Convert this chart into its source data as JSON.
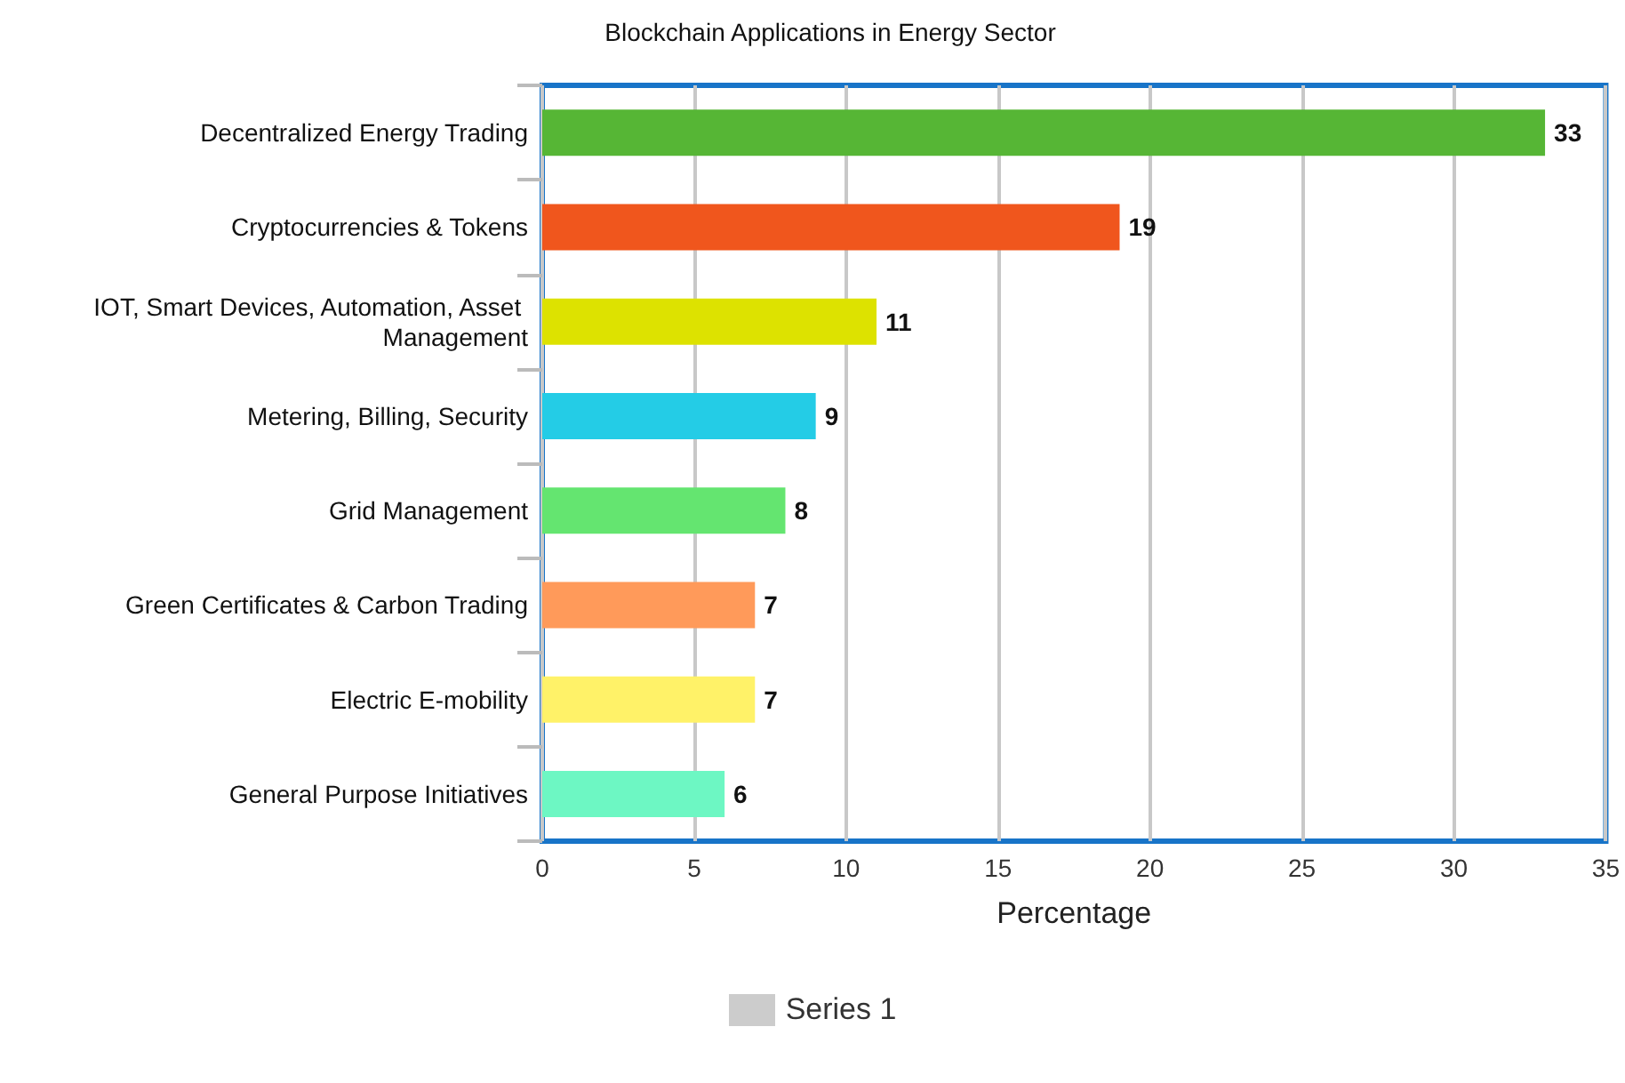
{
  "chart_data": {
    "type": "bar",
    "orientation": "horizontal",
    "title": "Blockchain Applications in Energy Sector",
    "xlabel": "Percentage",
    "categories": [
      "Decentralized Energy Trading",
      "Cryptocurrencies & Tokens",
      "IOT, Smart Devices, Automation, Asset Management",
      "Metering, Billing, Security",
      "Grid Management",
      "Green Certificates & Carbon Trading",
      "Electric E-mobility",
      "General Purpose Initiatives"
    ],
    "series": [
      {
        "name": "Series 1",
        "color": "#cccccc",
        "values": [
          33,
          19,
          11,
          9,
          8,
          7,
          7,
          6
        ],
        "colors": [
          "#56b635",
          "#f0561d",
          "#dde200",
          "#24cce6",
          "#64e570",
          "#ff9a5a",
          "#fff268",
          "#6df7c3"
        ]
      }
    ],
    "xlim": [
      0,
      35
    ],
    "xticks": [
      0,
      5,
      10,
      15,
      20,
      25,
      30,
      35
    ],
    "grid": "x",
    "data_labels": true,
    "legend": "bottom"
  }
}
